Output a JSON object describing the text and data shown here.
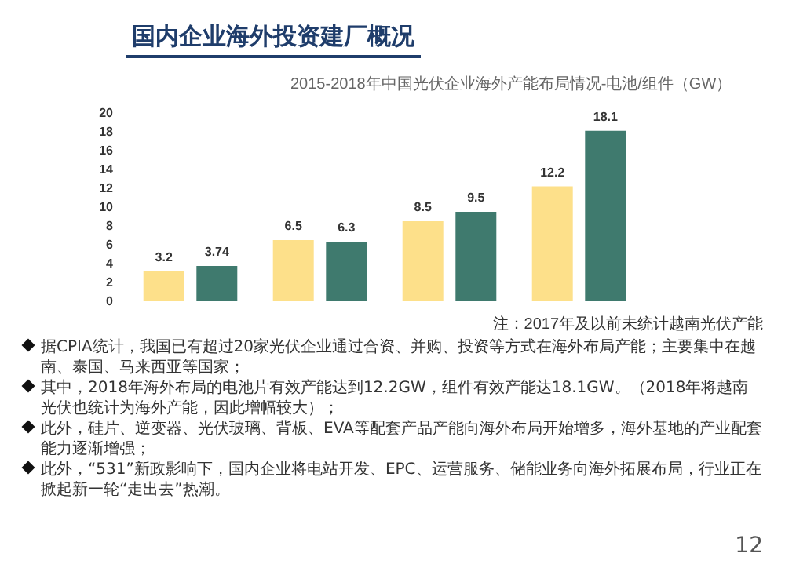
{
  "chart_data": {
    "type": "bar",
    "title": "国内企业海外投资建厂概况",
    "subtitle": "2015-2018年中国光伏企业海外产能布局情况-电池/组件（GW）",
    "categories": [
      null,
      null,
      null,
      null
    ],
    "series": [
      {
        "color": "#fde08a",
        "values": [
          3.2,
          6.5,
          8.5,
          12.2
        ]
      },
      {
        "color": "#3f7a6e",
        "values": [
          3.74,
          6.3,
          9.5,
          18.1
        ]
      }
    ],
    "ylim": [
      0,
      20
    ],
    "yticks": [
      0,
      2,
      4,
      6,
      8,
      10,
      12,
      14,
      16,
      18,
      20
    ],
    "grid": false,
    "data_labels": true,
    "annotations": [
      "注：2017年及以前未统计越南光伏产能",
      "据CPIA统计，我国已有超过20家光伏企业通过合资、并购、投资等方式在海外布局产能；主要集中在越南、泰国、马来西亚等国家；",
      "其中，2018年海外布局的电池片有效产能达到12.2GW，组件有效产能达18.1GW。（2018年将越南光伏也统计为海外产能，因此增幅较大）；",
      "此外，硅片、逆变器、光伏玻璃、背板、EVA等配套产品产能向海外布局开始增多，海外基地的产业配套能力逐渐增强；",
      "此外，“531”新政影响下，国内企业将电站开发、EPC、运营服务、储能业务向海外拓展布局，行业正在掀起新一轮“走出去”热潮。",
      "12"
    ]
  }
}
